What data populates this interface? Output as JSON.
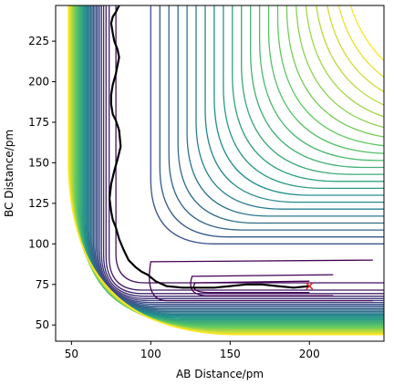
{
  "chart_data": {
    "type": "contour",
    "xlabel": "AB Distance/pm",
    "ylabel": "BC Distance/pm",
    "xlim": [
      40,
      247
    ],
    "ylim": [
      40,
      247
    ],
    "x_ticks": [
      50,
      100,
      150,
      200
    ],
    "y_ticks": [
      50,
      75,
      100,
      125,
      150,
      175,
      200,
      225
    ],
    "colormap": [
      "#440154",
      "#3b528b",
      "#21918c",
      "#5ec962",
      "#fde725"
    ],
    "series": [
      {
        "kind": "trajectory",
        "color": "#000000",
        "x": [
          200,
          190,
          180,
          170,
          160,
          150,
          140,
          130,
          120,
          110,
          103,
          98,
          94,
          90,
          86,
          83,
          80,
          78,
          76,
          75,
          74,
          75,
          77,
          79,
          81,
          80,
          78,
          76,
          75,
          75,
          76,
          78,
          79,
          80,
          79,
          77,
          76,
          75,
          76,
          78,
          80
        ],
        "y": [
          74,
          73,
          74,
          75,
          75,
          74,
          73,
          73,
          73,
          74,
          77,
          81,
          83,
          86,
          90,
          96,
          103,
          110,
          115,
          120,
          128,
          137,
          145,
          152,
          160,
          170,
          176,
          180,
          186,
          192,
          198,
          205,
          210,
          215,
          220,
          225,
          230,
          236,
          240,
          243,
          247
        ]
      }
    ],
    "marker": {
      "x": 200,
      "y": 74,
      "symbol": "x",
      "color": "#d62728"
    }
  }
}
